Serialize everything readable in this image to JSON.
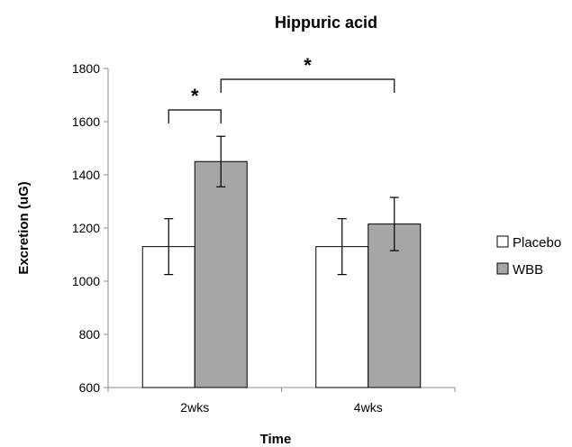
{
  "chart_data": {
    "type": "bar",
    "title": "Hippuric acid",
    "xlabel": "Time",
    "ylabel": "Excretion (uG)",
    "categories": [
      "2wks",
      "4wks"
    ],
    "ylim": [
      600,
      1800
    ],
    "yticks": [
      600,
      800,
      1000,
      1200,
      1400,
      1600,
      1800
    ],
    "grid": false,
    "legend_position": "right",
    "series": [
      {
        "name": "Placebo",
        "color": "#ffffff",
        "values": [
          1130,
          1130
        ],
        "error": [
          105,
          105
        ]
      },
      {
        "name": "WBB",
        "color": "#a6a6a6",
        "values": [
          1450,
          1215
        ],
        "error": [
          95,
          100
        ]
      }
    ],
    "annotations": [
      {
        "label": "*",
        "from": {
          "category": 0,
          "series": 0
        },
        "to": {
          "category": 0,
          "series": 1
        }
      },
      {
        "label": "*",
        "from": {
          "category": 0,
          "series": 1
        },
        "to": {
          "category": 1,
          "series": 1
        }
      }
    ]
  }
}
